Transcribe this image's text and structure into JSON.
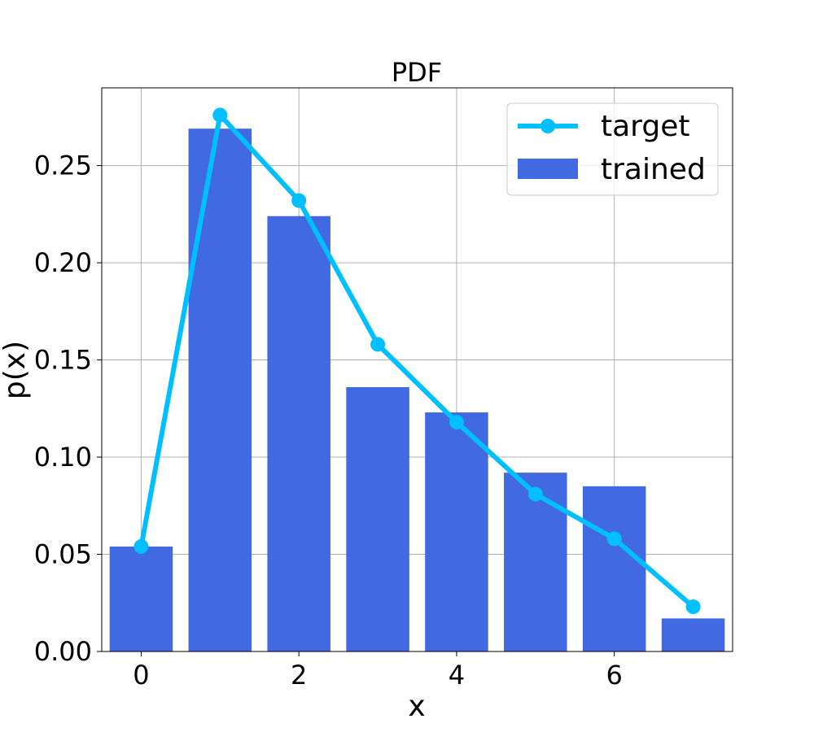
{
  "chart_data": {
    "type": "bar",
    "title": "PDF",
    "xlabel": "x",
    "ylabel": "p(x)",
    "xlim": [
      -0.5,
      7.5
    ],
    "ylim": [
      0,
      0.29
    ],
    "xticks": [
      0,
      2,
      4,
      6
    ],
    "xtick_labels": [
      "0",
      "2",
      "4",
      "6"
    ],
    "yticks": [
      0,
      0.05,
      0.1,
      0.15,
      0.2,
      0.25
    ],
    "ytick_labels": [
      "0.00",
      "0.05",
      "0.10",
      "0.15",
      "0.20",
      "0.25"
    ],
    "grid": true,
    "legend_position": "top-right",
    "x": [
      0,
      1,
      2,
      3,
      4,
      5,
      6,
      7
    ],
    "series": [
      {
        "name": "target",
        "kind": "line",
        "color": "#00bfff",
        "marker": "circle",
        "values": [
          0.054,
          0.276,
          0.232,
          0.158,
          0.118,
          0.081,
          0.058,
          0.023
        ]
      },
      {
        "name": "trained",
        "kind": "bar",
        "color": "#4169e1",
        "values": [
          0.054,
          0.269,
          0.224,
          0.136,
          0.123,
          0.092,
          0.085,
          0.017
        ]
      }
    ]
  }
}
